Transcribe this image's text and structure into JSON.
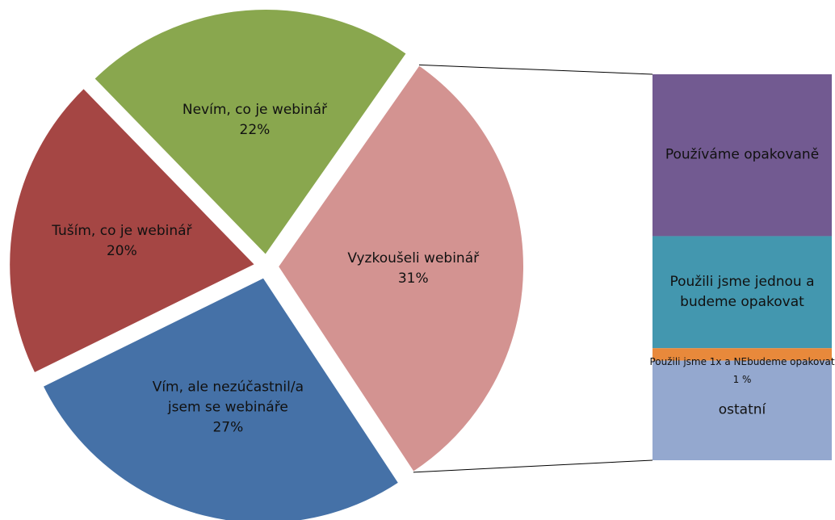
{
  "chart_data": {
    "type": "pie",
    "categories": [
      "Vyzkoušeli webinář",
      "Vím, ale nezúčastnil/a jsem se webináře",
      "Tuším, co je webinář",
      "Nevím, co je webinář"
    ],
    "values": [
      31,
      27,
      20,
      22
    ],
    "value_labels": [
      "31%",
      "27%",
      "20%",
      "22%"
    ],
    "colors": [
      "#d39391",
      "#4571a7",
      "#a54644",
      "#89a74e"
    ],
    "breakout": {
      "categories": [
        "Používáme opakovaně",
        "Použili jsme jednou a budeme opakovat",
        "Použili jsme 1x a NEbudeme opakovat",
        "ostatní"
      ],
      "values": [
        13,
        9,
        1,
        8
      ],
      "value_labels": [
        null,
        null,
        "1 %",
        null
      ],
      "colors": [
        "#725a91",
        "#4397af",
        "#e8893b",
        "#94a8cf"
      ]
    }
  }
}
